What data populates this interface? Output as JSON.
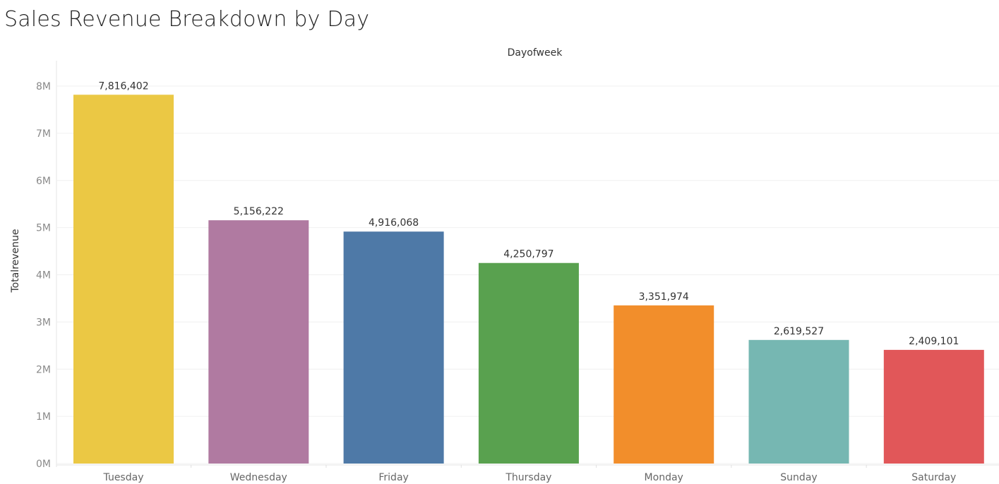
{
  "title": "Sales Revenue Breakdown by Day",
  "chart_data": {
    "type": "bar",
    "title": "Sales Revenue Breakdown by Day",
    "column_header": "Dayofweek",
    "xlabel": "",
    "ylabel": "Totalrevenue",
    "categories": [
      "Tuesday",
      "Wednesday",
      "Friday",
      "Thursday",
      "Monday",
      "Sunday",
      "Saturday"
    ],
    "values": [
      7816402,
      5156222,
      4916068,
      4250797,
      3351974,
      2619527,
      2409101
    ],
    "value_labels": [
      "7,816,402",
      "5,156,222",
      "4,916,068",
      "4,250,797",
      "3,351,974",
      "2,619,527",
      "2,409,101"
    ],
    "colors": [
      "#EBC844",
      "#B07AA1",
      "#4E79A7",
      "#59A14F",
      "#F28E2B",
      "#76B7B2",
      "#E15759"
    ],
    "ylim": [
      0,
      8000000
    ],
    "yticks": [
      0,
      1000000,
      2000000,
      3000000,
      4000000,
      5000000,
      6000000,
      7000000,
      8000000
    ],
    "ytick_labels": [
      "0M",
      "1M",
      "2M",
      "3M",
      "4M",
      "5M",
      "6M",
      "7M",
      "8M"
    ],
    "grid": true,
    "legend": "none"
  }
}
